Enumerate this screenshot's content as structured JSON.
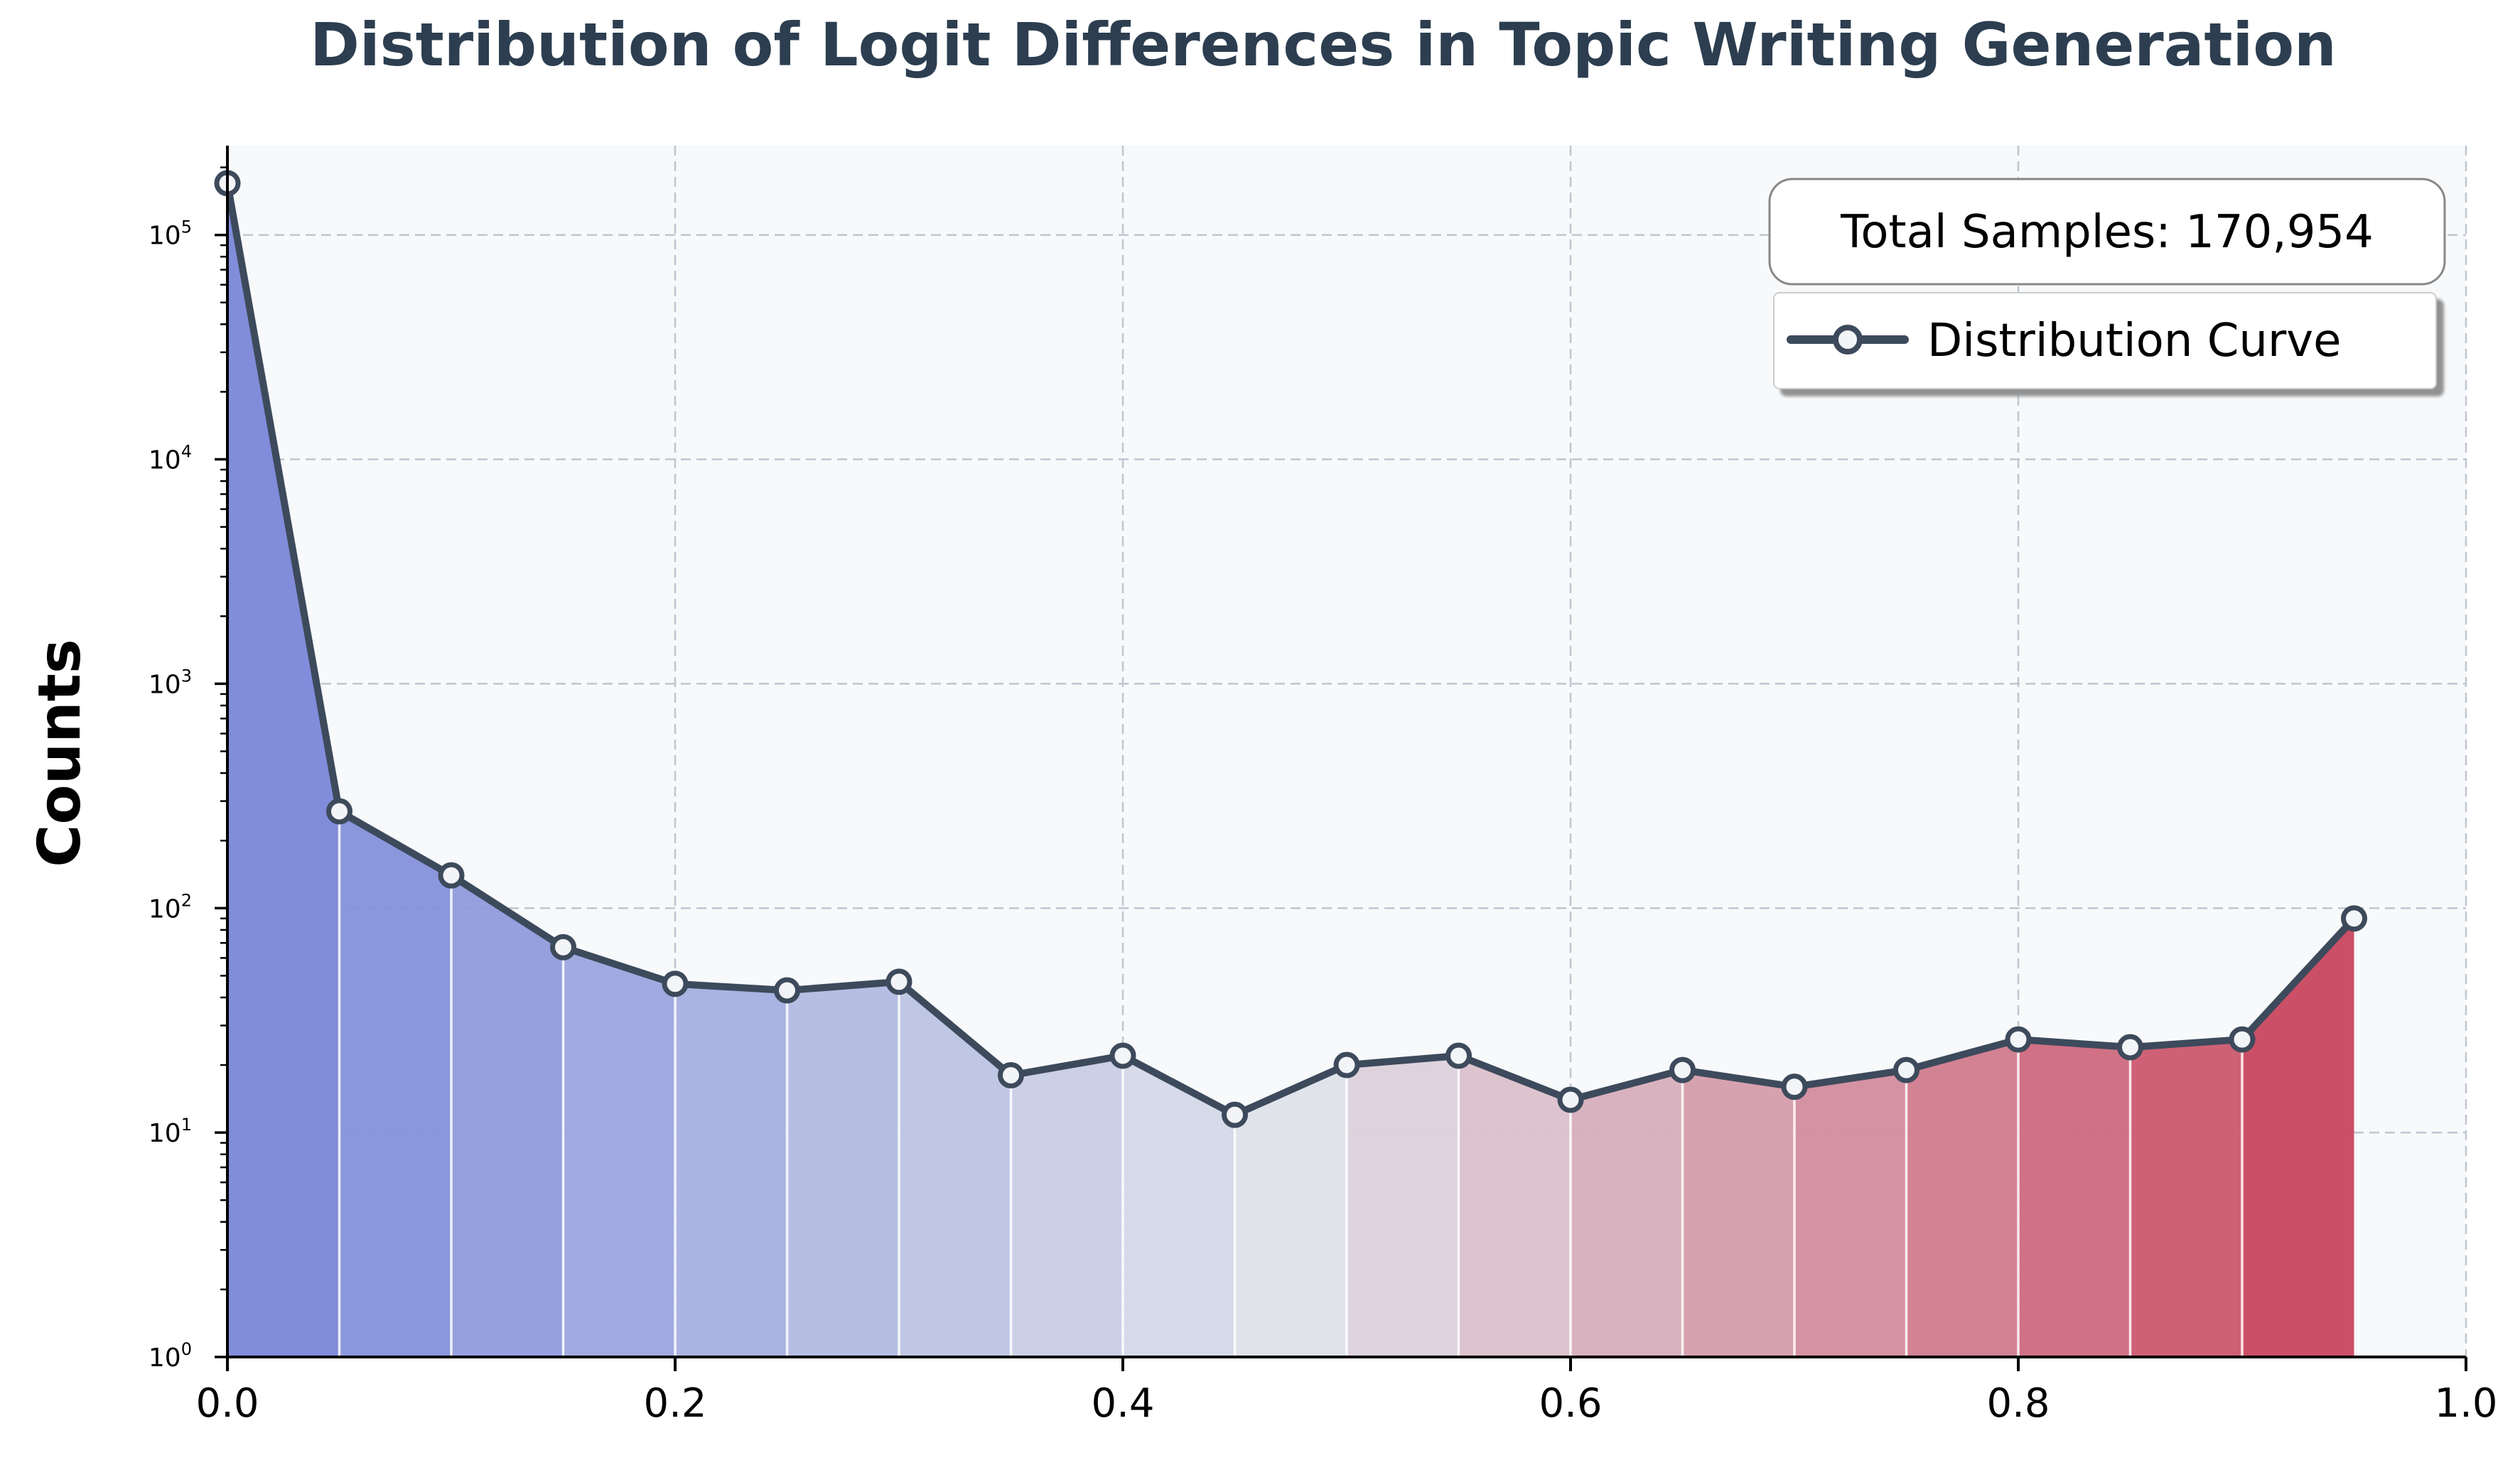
{
  "chart_data": {
    "type": "area",
    "title": "Distribution of Logit Differences in Topic Writing Generation",
    "xlabel": "",
    "ylabel": "Counts",
    "yscale": "log",
    "xlim": [
      0.0,
      1.0
    ],
    "ylim": [
      1,
      250000
    ],
    "x": [
      0.0,
      0.05,
      0.1,
      0.15,
      0.2,
      0.25,
      0.3,
      0.35,
      0.4,
      0.45,
      0.5,
      0.55,
      0.6,
      0.65,
      0.7,
      0.75,
      0.8,
      0.85,
      0.9,
      0.95
    ],
    "series": [
      {
        "name": "Distribution Curve",
        "values": [
          170000,
          270,
          140,
          67,
          46,
          43,
          47,
          18,
          22,
          12,
          20,
          22,
          14,
          19,
          16,
          19,
          26,
          24,
          26,
          90
        ]
      }
    ],
    "x_ticks": [
      "0.0",
      "0.2",
      "0.4",
      "0.6",
      "0.8",
      "1.0"
    ],
    "x_tick_values": [
      0.0,
      0.2,
      0.4,
      0.6,
      0.8,
      1.0
    ],
    "y_ticks": [
      {
        "base": "10",
        "exp": "0",
        "value": 1
      },
      {
        "base": "10",
        "exp": "1",
        "value": 10
      },
      {
        "base": "10",
        "exp": "2",
        "value": 100
      },
      {
        "base": "10",
        "exp": "3",
        "value": 1000
      },
      {
        "base": "10",
        "exp": "4",
        "value": 10000
      },
      {
        "base": "10",
        "exp": "5",
        "value": 100000
      }
    ],
    "annotation": "Total Samples: 170,954",
    "legend": {
      "entries": [
        "Distribution Curve"
      ],
      "placement": "top-right"
    },
    "grid": true,
    "colors": {
      "line": "#3d4a5c",
      "background": "#f7f9fb",
      "grid": "#bfc6d0",
      "fill_start": "#7a87d8",
      "fill_mid": "#dfe2ea",
      "fill_end": "#c8475f",
      "title": "#2c3e50"
    }
  }
}
